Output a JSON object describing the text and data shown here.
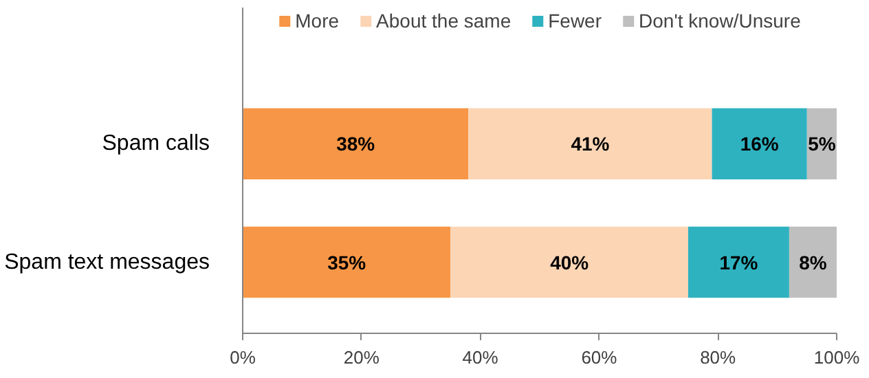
{
  "chart_data": {
    "type": "bar",
    "orientation": "horizontal",
    "stacked": true,
    "categories": [
      "Spam calls",
      "Spam text messages"
    ],
    "series": [
      {
        "name": "More",
        "color": "#f79646",
        "values": [
          38,
          35
        ],
        "value_labels": [
          "38%",
          "35%"
        ]
      },
      {
        "name": "About the same",
        "color": "#fcd5b5",
        "values": [
          41,
          40
        ],
        "value_labels": [
          "41%",
          "40%"
        ]
      },
      {
        "name": "Fewer",
        "color": "#2eb2c0",
        "values": [
          16,
          17
        ],
        "value_labels": [
          "16%",
          "17%"
        ]
      },
      {
        "name": "Don't know/Unsure",
        "color": "#bfbfbf",
        "values": [
          5,
          8
        ],
        "value_labels": [
          "5%",
          "8%"
        ]
      }
    ],
    "xlim": [
      0,
      100
    ],
    "xticks": [
      {
        "value": 0,
        "label": "0%"
      },
      {
        "value": 20,
        "label": "20%"
      },
      {
        "value": 40,
        "label": "40%"
      },
      {
        "value": 60,
        "label": "60%"
      },
      {
        "value": 80,
        "label": "80%"
      },
      {
        "value": 100,
        "label": "100%"
      }
    ],
    "grid": false,
    "legend": "top"
  }
}
